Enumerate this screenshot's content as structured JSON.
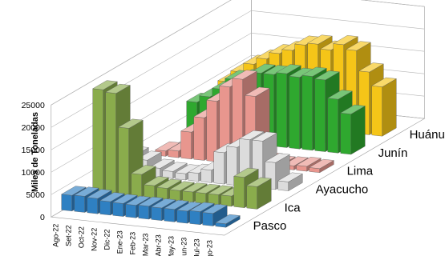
{
  "chart_data": {
    "type": "bar",
    "subtype": "3d-column",
    "ylabel": "Miles de Toneladas",
    "ylim": [
      0,
      25000
    ],
    "yticks": [
      0,
      5000,
      10000,
      15000,
      20000,
      25000
    ],
    "grid": true,
    "categories": [
      "Ago-22",
      "Set-22",
      "Oct-22",
      "Nov-22",
      "Dic-22",
      "Ene-23",
      "Feb-23",
      "Mar-23",
      "Abr-23",
      "May-23",
      "Jun-23",
      "Jul-23",
      "Ago-23"
    ],
    "series": [
      {
        "name": "Pasco",
        "color": "#2f80c2",
        "values": [
          3500,
          3600,
          3400,
          3000,
          2900,
          2800,
          2900,
          2800,
          2800,
          2700,
          2900,
          2800,
          800
        ]
      },
      {
        "name": "Ica",
        "color": "#8aac4c",
        "values": [
          23000,
          22500,
          15000,
          5000,
          2800,
          2500,
          2300,
          2300,
          2300,
          2300,
          2300,
          6800,
          5000
        ]
      },
      {
        "name": "Ayacucho",
        "color": "#dcdcdc",
        "values": [
          4200,
          3500,
          2000,
          1600,
          1400,
          1800,
          2800,
          7000,
          8500,
          10500,
          10500,
          6000,
          2000
        ]
      },
      {
        "name": "Lima",
        "color": "#e8968e",
        "values": [
          1200,
          1500,
          6000,
          9500,
          13500,
          17000,
          19000,
          15500,
          1200,
          800,
          900,
          1100,
          900
        ]
      },
      {
        "name": "Junín",
        "color": "#2fa82f",
        "values": [
          8000,
          9500,
          11500,
          14000,
          14500,
          16000,
          16000,
          16500,
          16000,
          16500,
          16000,
          12000,
          9000
        ]
      },
      {
        "name": "Huánuco",
        "color": "#f5c518",
        "values": [
          8500,
          11000,
          13000,
          14500,
          16000,
          17000,
          18500,
          19000,
          18000,
          19500,
          18500,
          14000,
          11000
        ]
      }
    ]
  }
}
